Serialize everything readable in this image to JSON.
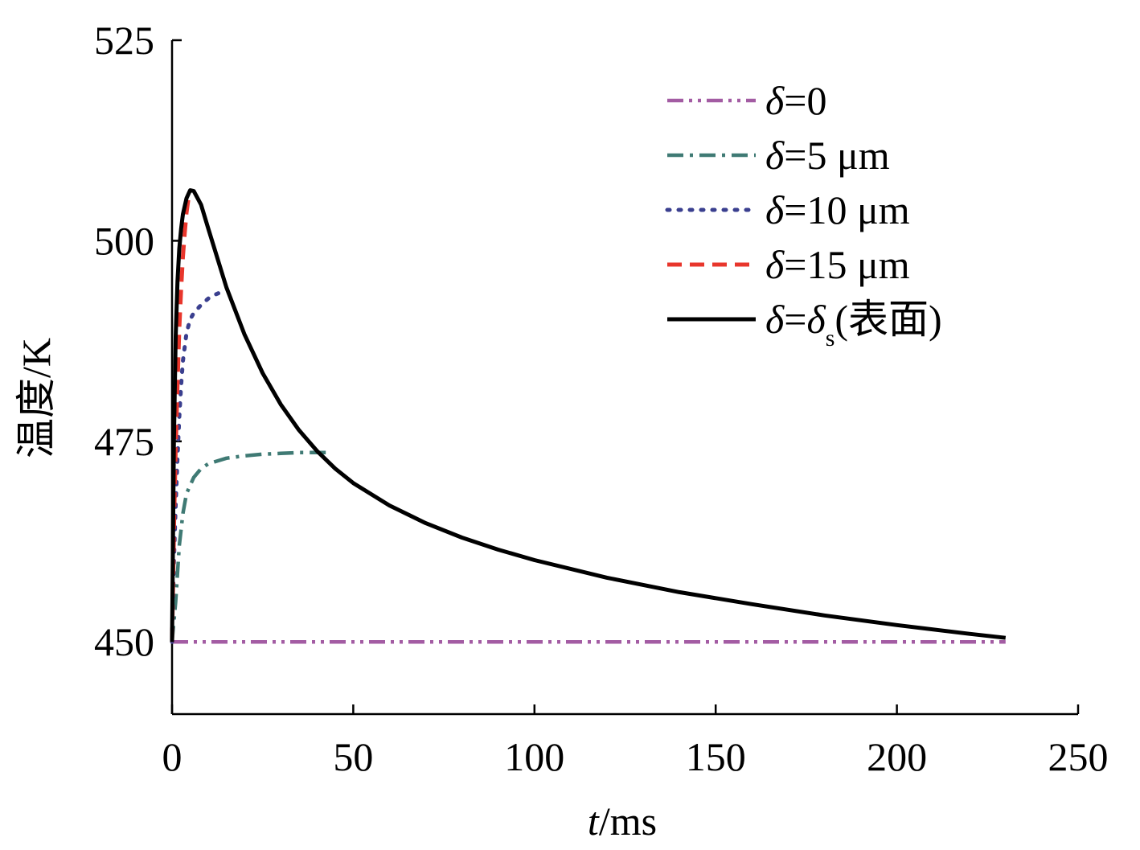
{
  "chart_data": {
    "type": "line",
    "title": "",
    "xlabel_italic": "t",
    "xlabel_rest": "/ms",
    "ylabel": "温度/K",
    "xlim": [
      0,
      250
    ],
    "ylim": [
      441,
      525
    ],
    "x_ticks": [
      0,
      50,
      100,
      150,
      200,
      250
    ],
    "y_ticks": [
      450,
      475,
      500,
      525
    ],
    "x_tick_labels": [
      "0",
      "50",
      "100",
      "150",
      "200",
      "250"
    ],
    "y_tick_labels": [
      "450",
      "475",
      "500",
      "525"
    ],
    "grid": false,
    "legend_position": "top-right",
    "series": [
      {
        "name": "δ=0",
        "legend_italic": "δ",
        "legend_rest": "=0",
        "color": "#a35ca3",
        "style": "dashdotdot",
        "x": [
          0,
          230
        ],
        "y": [
          450,
          450
        ]
      },
      {
        "name": "δ=5 μm",
        "legend_italic": "δ",
        "legend_rest": "=5 μm",
        "color": "#3f7a74",
        "style": "dashdot",
        "x": [
          0,
          1,
          2,
          3,
          4,
          6,
          8,
          10,
          15,
          20,
          25,
          30,
          35,
          40,
          44
        ],
        "y": [
          450,
          455,
          462,
          466,
          468.5,
          470.5,
          471.6,
          472.2,
          472.9,
          473.2,
          473.4,
          473.5,
          473.6,
          473.6,
          473.6
        ]
      },
      {
        "name": "δ=10 μm",
        "legend_italic": "δ",
        "legend_rest": "=10 μm",
        "color": "#3a3f8f",
        "style": "dotted",
        "x": [
          0,
          0.5,
          1,
          1.5,
          2,
          2.5,
          3,
          4,
          5,
          6,
          8,
          10,
          12,
          14,
          15
        ],
        "y": [
          450,
          460,
          467,
          473,
          478,
          482,
          485,
          488.5,
          490.2,
          491,
          492,
          492.8,
          493.3,
          493.7,
          493.8
        ]
      },
      {
        "name": "δ=15 μm",
        "legend_italic": "δ",
        "legend_rest": "=15 μm",
        "color": "#e8362c",
        "style": "dashed",
        "x": [
          0,
          0.3,
          0.6,
          1,
          1.5,
          2,
          2.5,
          3,
          3.5,
          4,
          4.5,
          5
        ],
        "y": [
          450,
          458,
          466,
          474,
          482,
          489,
          494,
          498,
          501,
          503.5,
          505.2,
          506.2
        ]
      },
      {
        "name": "δ=δs(表面)",
        "legend_italic": "δ",
        "legend_mid": "=",
        "legend_italic2": "δ",
        "legend_sub": "s",
        "legend_tail": "(表面)",
        "color": "#000000",
        "style": "solid",
        "x": [
          0,
          0.5,
          1,
          1.5,
          2,
          2.5,
          3,
          4,
          5,
          6,
          8,
          10,
          15,
          20,
          25,
          30,
          35,
          40,
          45,
          50,
          60,
          70,
          80,
          90,
          100,
          120,
          140,
          160,
          180,
          200,
          220,
          230
        ],
        "y": [
          450,
          475,
          488,
          495,
          499,
          501.5,
          503.3,
          505.3,
          506.3,
          506.2,
          504.5,
          501.5,
          494.2,
          488.3,
          483.5,
          479.6,
          476.4,
          473.8,
          471.6,
          469.8,
          467.0,
          464.8,
          463.0,
          461.5,
          460.2,
          458.0,
          456.2,
          454.7,
          453.3,
          452.1,
          451.0,
          450.5
        ]
      }
    ]
  }
}
